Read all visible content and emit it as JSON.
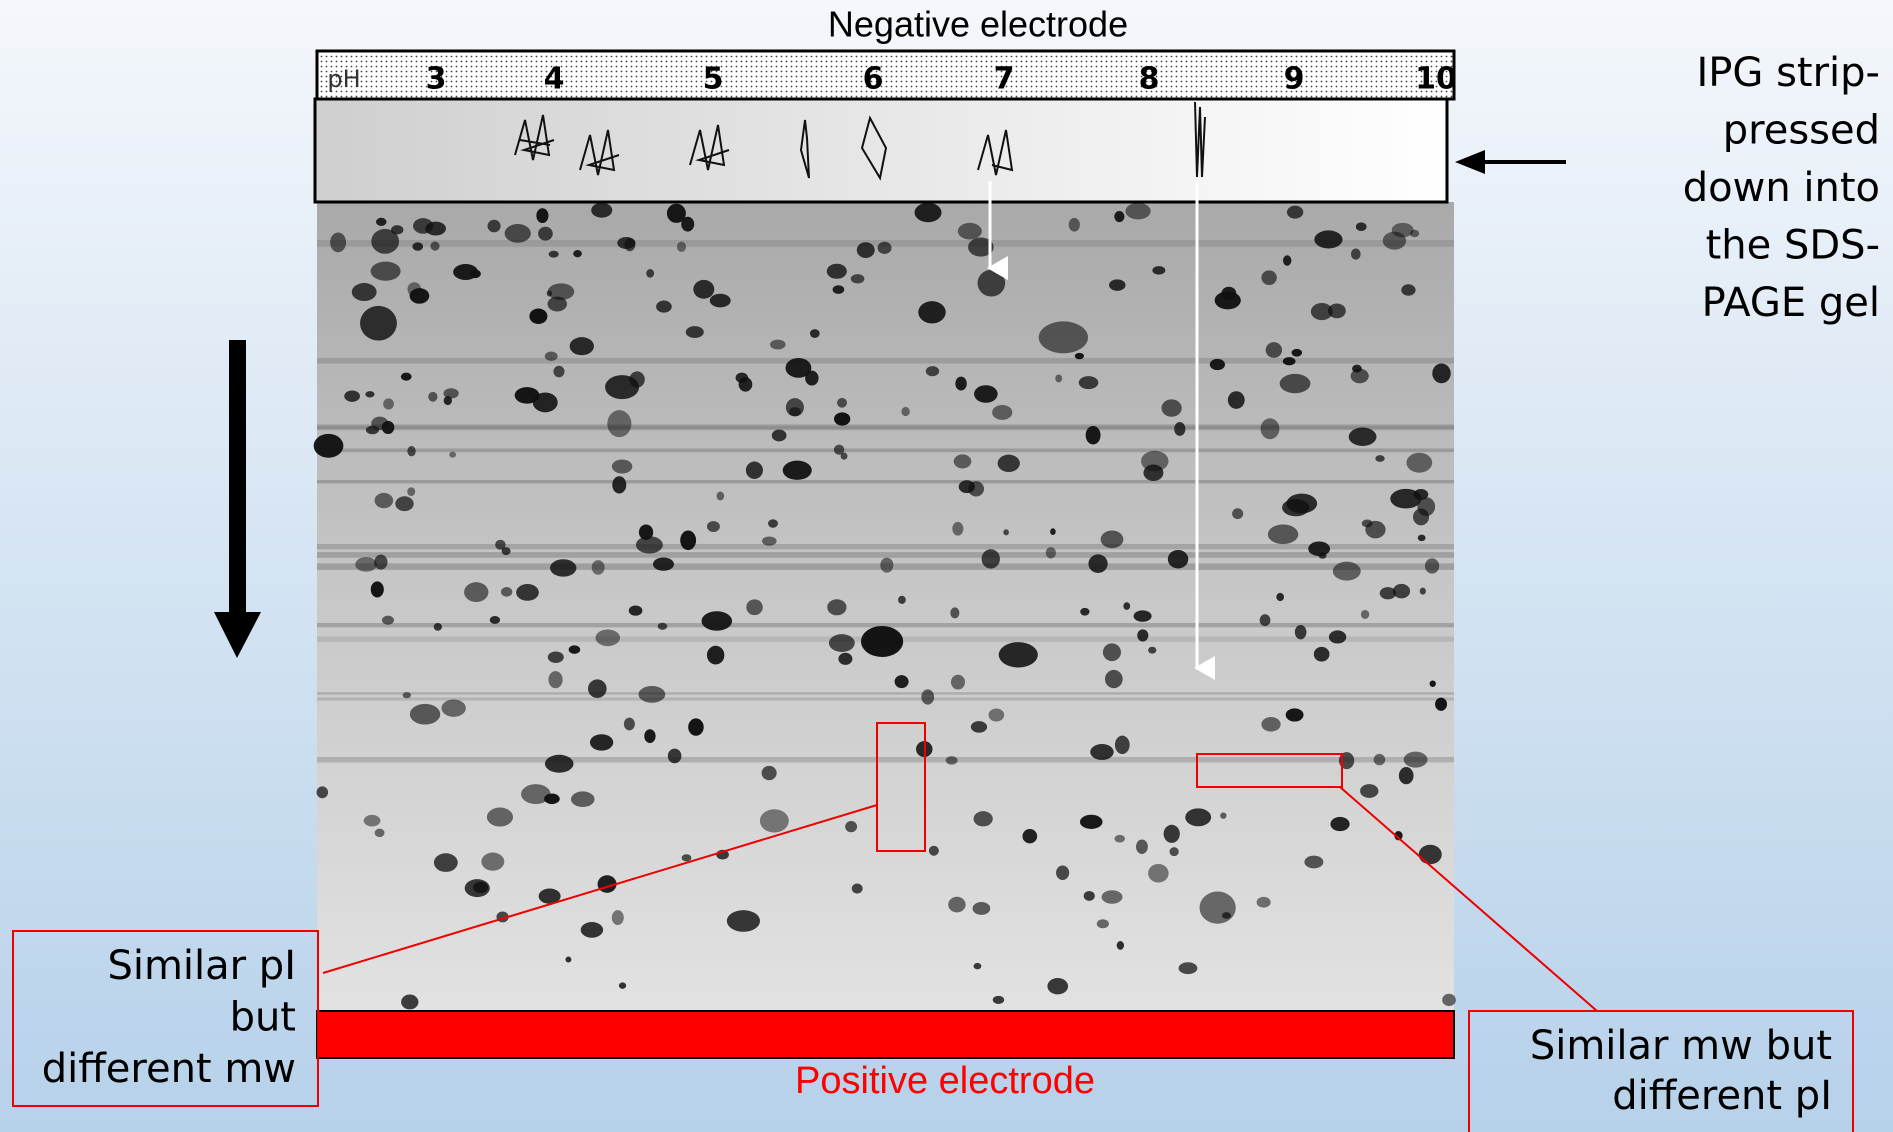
{
  "header": {
    "top_label": "Negative electrode",
    "bottom_label": "Positive electrode"
  },
  "strip": {
    "ph_labels": [
      "pH",
      "3",
      "4",
      "5",
      "6",
      "7",
      "8",
      "9",
      "10"
    ]
  },
  "annotations": {
    "ipg": [
      "IPG strip-",
      "pressed",
      "down into",
      "the SDS-",
      "PAGE gel"
    ],
    "left_box": [
      "Similar pI",
      "but",
      "different mw"
    ],
    "right_box": [
      "Similar mw but",
      "different pI"
    ]
  }
}
